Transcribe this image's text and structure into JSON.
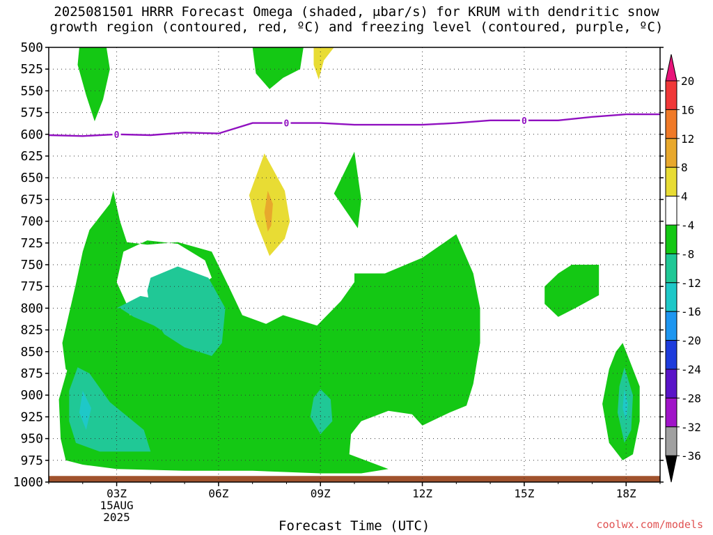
{
  "title": {
    "line1": "2025081501 HRRR Forecast Omega (shaded, μbar/s) for KRUM with dendritic snow",
    "line2": "growth region (contoured, red, ºC) and freezing level (contoured, purple, ºC)"
  },
  "watermark": "coolwx.com/models",
  "chart_data": {
    "type": "time-height contour",
    "xlabel": "Forecast Time (UTC)",
    "x_ticks": [
      {
        "hour": 3,
        "label": "03Z"
      },
      {
        "hour": 6,
        "label": "06Z"
      },
      {
        "hour": 9,
        "label": "09Z"
      },
      {
        "hour": 12,
        "label": "12Z"
      },
      {
        "hour": 15,
        "label": "15Z"
      },
      {
        "hour": 18,
        "label": "18Z"
      }
    ],
    "date_label": [
      "15AUG",
      "2025"
    ],
    "xlim": [
      1,
      19
    ],
    "ylim": [
      1000,
      500
    ],
    "y_ticks": [
      500,
      525,
      550,
      575,
      600,
      625,
      650,
      675,
      700,
      725,
      750,
      775,
      800,
      825,
      850,
      875,
      900,
      925,
      950,
      975,
      1000
    ],
    "colorbar": {
      "labels": [
        "20",
        "16",
        "12",
        "8",
        "4",
        "-4",
        "-8",
        "-12",
        "-16",
        "-20",
        "-24",
        "-28",
        "-32",
        "-36"
      ],
      "bins": [
        {
          "range": [
            20,
            null
          ],
          "color": "#e8147a"
        },
        {
          "range": [
            16,
            20
          ],
          "color": "#f03838"
        },
        {
          "range": [
            12,
            16
          ],
          "color": "#f07a28"
        },
        {
          "range": [
            8,
            12
          ],
          "color": "#e8a82c"
        },
        {
          "range": [
            4,
            8
          ],
          "color": "#e8dc34"
        },
        {
          "range": [
            -4,
            4
          ],
          "color": "#ffffff"
        },
        {
          "range": [
            -8,
            -4
          ],
          "color": "#14c814"
        },
        {
          "range": [
            -12,
            -8
          ],
          "color": "#20c896"
        },
        {
          "range": [
            -16,
            -12
          ],
          "color": "#1ec8c8"
        },
        {
          "range": [
            -20,
            -16
          ],
          "color": "#1e96f0"
        },
        {
          "range": [
            -24,
            -20
          ],
          "color": "#1e3cdc"
        },
        {
          "range": [
            -28,
            -24
          ],
          "color": "#5a14c8"
        },
        {
          "range": [
            -32,
            -28
          ],
          "color": "#a014c8"
        },
        {
          "range": [
            -36,
            -32
          ],
          "color": "#a0a0a0"
        },
        {
          "range": [
            null,
            -36
          ],
          "color": "#000000"
        }
      ]
    },
    "freezing_level": {
      "color": "#9010c0",
      "label": "0",
      "label_hours": [
        3,
        8,
        15
      ],
      "points": [
        [
          1,
          601
        ],
        [
          2,
          602
        ],
        [
          3,
          600
        ],
        [
          4,
          601
        ],
        [
          5,
          598
        ],
        [
          6,
          599
        ],
        [
          7,
          587
        ],
        [
          8,
          587
        ],
        [
          9,
          587
        ],
        [
          10,
          589
        ],
        [
          11,
          589
        ],
        [
          12,
          589
        ],
        [
          13,
          587
        ],
        [
          14,
          584
        ],
        [
          15,
          584
        ],
        [
          16,
          584
        ],
        [
          17,
          580
        ],
        [
          18,
          577
        ],
        [
          19,
          577
        ]
      ]
    },
    "regions": [
      {
        "name": "green-top-left",
        "color": "#14c814",
        "points": [
          [
            1.9,
            500
          ],
          [
            2.7,
            500
          ],
          [
            2.8,
            525
          ],
          [
            2.6,
            560
          ],
          [
            2.35,
            585
          ],
          [
            2.1,
            555
          ],
          [
            1.85,
            520
          ]
        ]
      },
      {
        "name": "green-top-mid",
        "color": "#14c814",
        "points": [
          [
            7.0,
            500
          ],
          [
            8.5,
            500
          ],
          [
            8.4,
            525
          ],
          [
            7.9,
            535
          ],
          [
            7.5,
            548
          ],
          [
            7.1,
            530
          ]
        ]
      },
      {
        "name": "yellow-top",
        "color": "#e8dc34",
        "points": [
          [
            8.8,
            500
          ],
          [
            9.4,
            500
          ],
          [
            9.1,
            515
          ],
          [
            8.95,
            537
          ],
          [
            8.8,
            520
          ]
        ]
      },
      {
        "name": "yellow-mid",
        "color": "#e8dc34",
        "points": [
          [
            7.35,
            622
          ],
          [
            7.95,
            665
          ],
          [
            8.1,
            700
          ],
          [
            7.95,
            720
          ],
          [
            7.5,
            740
          ],
          [
            7.1,
            700
          ],
          [
            6.9,
            670
          ]
        ]
      },
      {
        "name": "orange-mid",
        "color": "#e8a82c",
        "points": [
          [
            7.45,
            665
          ],
          [
            7.6,
            680
          ],
          [
            7.55,
            705
          ],
          [
            7.45,
            712
          ],
          [
            7.35,
            690
          ]
        ]
      },
      {
        "name": "green-small-09z",
        "color": "#14c814",
        "points": [
          [
            10.0,
            620
          ],
          [
            10.2,
            675
          ],
          [
            10.1,
            708
          ],
          [
            9.4,
            668
          ]
        ]
      },
      {
        "name": "green-main",
        "color": "#14c814",
        "points": [
          [
            1.7,
            850
          ],
          [
            2.1,
            815
          ],
          [
            2.8,
            808
          ],
          [
            3.3,
            810
          ],
          [
            3.8,
            800
          ],
          [
            4.8,
            790
          ],
          [
            5.8,
            765
          ],
          [
            5.6,
            745
          ],
          [
            4.8,
            726
          ],
          [
            3.9,
            722
          ],
          [
            3.2,
            735
          ],
          [
            3.0,
            770
          ],
          [
            3.35,
            800
          ],
          [
            3.5,
            830
          ],
          [
            3.0,
            845
          ],
          [
            2.1,
            858
          ],
          [
            1.75,
            880
          ],
          [
            1.5,
            870
          ],
          [
            1.4,
            840
          ],
          [
            1.8,
            772
          ],
          [
            2.0,
            735
          ],
          [
            2.2,
            710
          ],
          [
            2.8,
            680
          ],
          [
            2.9,
            665
          ],
          [
            3.1,
            700
          ],
          [
            3.3,
            724
          ],
          [
            3.9,
            727
          ],
          [
            4.8,
            724
          ],
          [
            5.8,
            735
          ],
          [
            6.3,
            775
          ],
          [
            6.7,
            808
          ],
          [
            7.4,
            818
          ],
          [
            7.9,
            808
          ],
          [
            8.9,
            820
          ],
          [
            9.6,
            792
          ],
          [
            10.0,
            770
          ],
          [
            10.0,
            760
          ],
          [
            10.9,
            760
          ],
          [
            12.0,
            742
          ],
          [
            13.0,
            715
          ],
          [
            13.5,
            760
          ],
          [
            13.7,
            800
          ],
          [
            13.7,
            840
          ],
          [
            13.5,
            887
          ],
          [
            13.3,
            912
          ],
          [
            12.8,
            920
          ],
          [
            12.0,
            935
          ],
          [
            11.7,
            922
          ],
          [
            11.0,
            918
          ],
          [
            10.2,
            930
          ],
          [
            9.9,
            945
          ],
          [
            9.85,
            968
          ],
          [
            11.0,
            985
          ],
          [
            10.2,
            990
          ],
          [
            9.0,
            990
          ],
          [
            7.0,
            987
          ],
          [
            5.0,
            987
          ],
          [
            3.0,
            985
          ],
          [
            2.0,
            980
          ],
          [
            1.5,
            975
          ],
          [
            1.35,
            950
          ],
          [
            1.3,
            905
          ]
        ]
      },
      {
        "name": "teal-left-top",
        "color": "#20c896",
        "points": [
          [
            3.0,
            800
          ],
          [
            3.7,
            786
          ],
          [
            4.25,
            790
          ],
          [
            5.0,
            802
          ],
          [
            5.3,
            830
          ],
          [
            4.9,
            840
          ],
          [
            4.1,
            820
          ],
          [
            3.5,
            810
          ],
          [
            3.1,
            800
          ]
        ]
      },
      {
        "name": "teal-mid",
        "color": "#20c896",
        "points": [
          [
            4.0,
            765
          ],
          [
            4.8,
            752
          ],
          [
            5.7,
            765
          ],
          [
            6.2,
            800
          ],
          [
            6.1,
            840
          ],
          [
            5.8,
            855
          ],
          [
            5.0,
            845
          ],
          [
            4.4,
            830
          ],
          [
            4.0,
            805
          ],
          [
            3.9,
            780
          ]
        ]
      },
      {
        "name": "teal-left-bottom",
        "color": "#20c896",
        "points": [
          [
            1.85,
            868
          ],
          [
            2.2,
            875
          ],
          [
            2.8,
            908
          ],
          [
            3.8,
            940
          ],
          [
            4.0,
            965
          ],
          [
            2.5,
            965
          ],
          [
            1.8,
            955
          ],
          [
            1.6,
            930
          ],
          [
            1.6,
            895
          ]
        ]
      },
      {
        "name": "cyan-left",
        "color": "#1ec8c8",
        "points": [
          [
            2.0,
            895
          ],
          [
            2.25,
            915
          ],
          [
            2.1,
            940
          ],
          [
            1.9,
            920
          ]
        ]
      },
      {
        "name": "teal-09z",
        "color": "#20c896",
        "points": [
          [
            9.0,
            893
          ],
          [
            9.3,
            905
          ],
          [
            9.35,
            930
          ],
          [
            9.0,
            945
          ],
          [
            8.7,
            925
          ],
          [
            8.8,
            903
          ]
        ]
      },
      {
        "name": "green-right-upper",
        "color": "#14c814",
        "points": [
          [
            16.4,
            750
          ],
          [
            17.2,
            750
          ],
          [
            17.2,
            785
          ],
          [
            16.5,
            800
          ],
          [
            16.0,
            810
          ],
          [
            15.6,
            795
          ],
          [
            15.6,
            775
          ],
          [
            16.0,
            760
          ]
        ]
      },
      {
        "name": "green-right-lower",
        "color": "#14c814",
        "points": [
          [
            17.9,
            840
          ],
          [
            18.1,
            860
          ],
          [
            18.4,
            890
          ],
          [
            18.4,
            930
          ],
          [
            18.2,
            968
          ],
          [
            17.9,
            975
          ],
          [
            17.5,
            955
          ],
          [
            17.3,
            910
          ],
          [
            17.5,
            870
          ],
          [
            17.7,
            850
          ]
        ]
      },
      {
        "name": "teal-right",
        "color": "#20c896",
        "points": [
          [
            17.95,
            868
          ],
          [
            18.2,
            900
          ],
          [
            18.15,
            940
          ],
          [
            17.95,
            955
          ],
          [
            17.75,
            920
          ],
          [
            17.8,
            890
          ]
        ]
      },
      {
        "name": "cyan-right",
        "color": "#1ec8c8",
        "points": [
          [
            17.95,
            893
          ],
          [
            18.05,
            910
          ],
          [
            18.0,
            930
          ],
          [
            17.9,
            915
          ]
        ]
      }
    ],
    "terrain": {
      "color": "#a0522d",
      "top_pressure": 993
    }
  }
}
